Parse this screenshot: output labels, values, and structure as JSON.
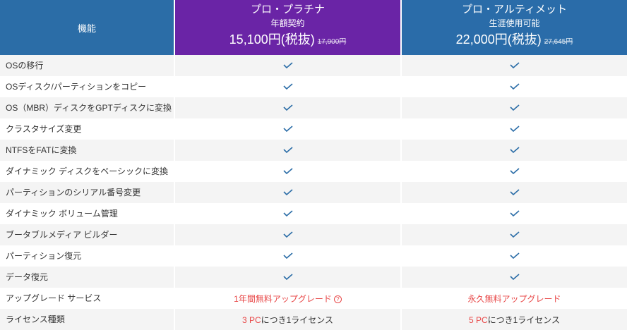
{
  "header": {
    "feature_label": "機能",
    "plans": [
      {
        "name": "プロ・プラチナ",
        "term": "年額契約",
        "price": "15,100円(税抜)",
        "old_price": "17,900円",
        "color": "#6a24a6"
      },
      {
        "name": "プロ・アルティメット",
        "term": "生涯使用可能",
        "price": "22,000円(税抜)",
        "old_price": "27,645円",
        "color": "#2a6ca9"
      }
    ]
  },
  "rows": [
    {
      "feature": "OSの移行",
      "icon": "check-icon"
    },
    {
      "feature": "OSディスク/パーティションをコピー",
      "icon": "check-icon"
    },
    {
      "feature": "OS（MBR）ディスクをGPTディスクに変換",
      "icon": "check-icon"
    },
    {
      "feature": "クラスタサイズ変更",
      "icon": "check-icon"
    },
    {
      "feature": "NTFSをFATに変換",
      "icon": "check-icon"
    },
    {
      "feature": "ダイナミック ディスクをベーシックに変換",
      "icon": "check-icon"
    },
    {
      "feature": "パーティションのシリアル番号変更",
      "icon": "check-icon"
    },
    {
      "feature": "ダイナミック ボリューム管理",
      "icon": "check-icon"
    },
    {
      "feature": "ブータブルメディア ビルダー",
      "icon": "check-icon"
    },
    {
      "feature": "パーティション復元",
      "icon": "check-icon"
    },
    {
      "feature": "データ復元",
      "icon": "check-icon"
    }
  ],
  "upgrade": {
    "feature": "アップグレード サービス",
    "platinum": "1年間無料アップグレード",
    "help_icon": "?",
    "ultimate": "永久無料アップグレード"
  },
  "license": {
    "feature": "ライセンス種類",
    "platinum_count": "3 PC",
    "platinum_rest": "につき1ライセンス",
    "ultimate_count": "5 PC",
    "ultimate_rest": "につき1ライセンス"
  },
  "colors": {
    "accent_red": "#e84848",
    "check": "#2b6da7"
  }
}
